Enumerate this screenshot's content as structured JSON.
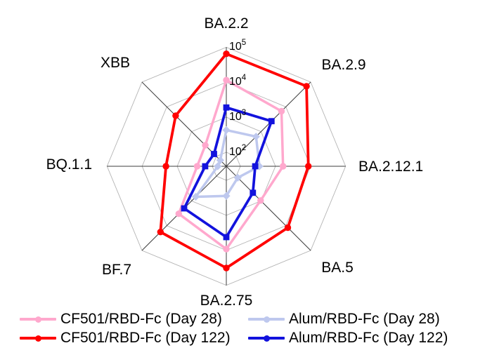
{
  "page": {
    "background": "#ffffff"
  },
  "chart_data": {
    "type": "radar",
    "title": "",
    "scale": "log10",
    "categories": [
      "BA.2.2",
      "BA.2.9",
      "BA.2.12.1",
      "BA.5",
      "BA.2.75",
      "BF.7",
      "BQ.1.1",
      "XBB"
    ],
    "angles_deg": [
      90,
      45,
      0,
      -45,
      -90,
      -135,
      180,
      135
    ],
    "radial_ticks": [
      {
        "base": "10",
        "exp": "2"
      },
      {
        "base": "10",
        "exp": "3"
      },
      {
        "base": "10",
        "exp": "4"
      },
      {
        "base": "10",
        "exp": "5"
      }
    ],
    "axis_min_exp": 1.6,
    "axis_max_exp": 5.0,
    "grid_on": true,
    "grid_color": "#b4b4b4",
    "spoke_color": "#3c3c3c",
    "legend_position": "bottom",
    "series": [
      {
        "name": "CF501/RBD-Fc (Day 28)",
        "color": "#ffa8cd",
        "marker": "circle",
        "line_width": 3.5,
        "z": 1,
        "values": [
          11500,
          6700,
          1650,
          960,
          9200,
          3300,
          270,
          280
        ]
      },
      {
        "name": "CF501/RBD-Fc (Day 122)",
        "color": "#ff0000",
        "marker": "circle",
        "line_width": 3.8,
        "z": 4,
        "values": [
          65000,
          68000,
          8700,
          12000,
          32000,
          18000,
          2100,
          4400
        ]
      },
      {
        "name": "Alum/RBD-Fc (Day 28)",
        "color": "#bec8ee",
        "marker": "diamond",
        "line_width": 3.5,
        "z": 2,
        "values": [
          430,
          630,
          350,
          115,
          280,
          680,
          70,
          70
        ]
      },
      {
        "name": "Alum/RBD-Fc (Day 122)",
        "color": "#1212dd",
        "marker": "square",
        "line_width": 3.7,
        "z": 3,
        "values": [
          1900,
          2650,
          265,
          470,
          4200,
          2000,
          160,
          125
        ]
      }
    ]
  }
}
